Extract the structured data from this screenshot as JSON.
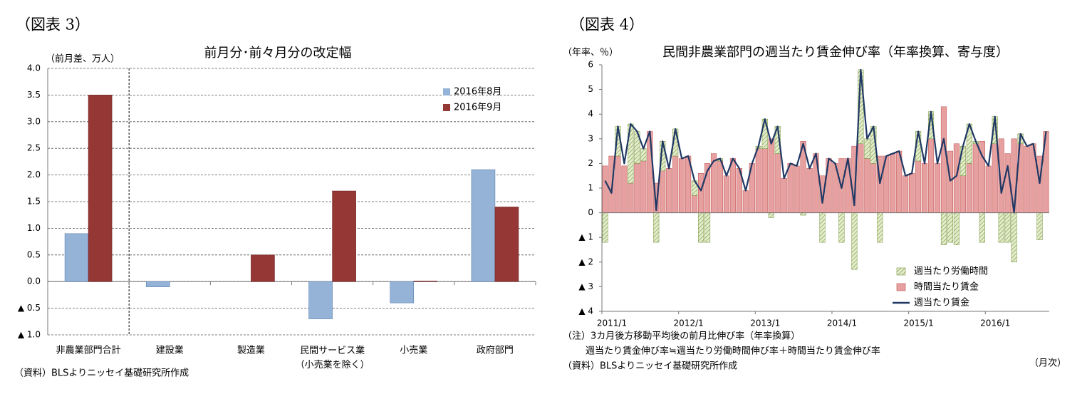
{
  "chart_data": [
    {
      "type": "bar",
      "heading": "（図表 3）",
      "title": "前月分･前々月分の改定幅",
      "y_label": "（前月差、万人）",
      "source": "（資料）BLSよりニッセイ基礎研究所作成",
      "categories": [
        "非農業部門合計",
        "建設業",
        "製造業",
        "民間サービス業\n（小売業を除く）",
        "小売業",
        "政府部門"
      ],
      "series": [
        {
          "name": "2016年8月",
          "color": "#95b3d7",
          "values": [
            0.9,
            -0.1,
            0,
            -0.7,
            -0.4,
            2.1
          ]
        },
        {
          "name": "2016年9月",
          "color": "#953735",
          "values": [
            3.5,
            0,
            0.5,
            1.7,
            0.01,
            1.4
          ]
        }
      ],
      "ylim": [
        -1,
        4
      ],
      "yticks": [
        {
          "value": 4,
          "label": "4.0"
        },
        {
          "value": 3.5,
          "label": "3.5"
        },
        {
          "value": 3,
          "label": "3.0"
        },
        {
          "value": 2.5,
          "label": "2.5"
        },
        {
          "value": 2,
          "label": "2.0"
        },
        {
          "value": 1.5,
          "label": "1.5"
        },
        {
          "value": 1,
          "label": "1.0"
        },
        {
          "value": 0.5,
          "label": "0.5"
        },
        {
          "value": 0,
          "label": "0.0"
        },
        {
          "value": -0.5,
          "label": "▲ 0.5"
        },
        {
          "value": -1,
          "label": "▲ 1.0"
        }
      ],
      "grid": true,
      "legend": "top-right"
    },
    {
      "type": "combo",
      "heading": "（図表 4）",
      "title": "民間非農業部門の週当たり賃金伸び率（年率換算、寄与度）",
      "y_label": "（年率、％）",
      "notes": [
        "（注）3カ月後方移動平均後の前月比伸び率（年率換算）",
        "週当たり賃金伸び率≒週当たり労働時間伸び率＋時間当たり賃金伸び率"
      ],
      "source": "（資料）BLSよりニッセイ基礎研究所作成",
      "x_note": "（月次）",
      "categories": [
        "2011/1",
        null,
        null,
        null,
        null,
        null,
        null,
        null,
        null,
        null,
        null,
        null,
        "2012/1",
        null,
        null,
        null,
        null,
        null,
        null,
        null,
        null,
        null,
        null,
        null,
        "2013/1",
        null,
        null,
        null,
        null,
        null,
        null,
        null,
        null,
        null,
        null,
        null,
        "2014/1",
        null,
        null,
        null,
        null,
        null,
        null,
        null,
        null,
        null,
        null,
        null,
        "2015/1",
        null,
        null,
        null,
        null,
        null,
        null,
        null,
        null,
        null,
        null,
        null,
        "2016/1",
        null,
        null,
        null,
        null,
        null,
        null,
        null,
        null,
        null
      ],
      "series": [
        {
          "name": "週当たり労働時間",
          "type": "bar",
          "color": "#d7e4bd",
          "pattern": "hatch",
          "values": [
            -1.2,
            0,
            1.2,
            0,
            2.4,
            1.3,
            0.5,
            0,
            -1.2,
            1.2,
            0,
            1.1,
            0,
            0,
            0.6,
            -1.2,
            -1.2,
            0,
            0.1,
            0,
            0,
            0,
            0,
            0,
            0.1,
            1.2,
            -0.2,
            1.1,
            0,
            0,
            0,
            -0.1,
            0,
            0,
            -1.2,
            0,
            0,
            -1.2,
            0,
            -2.3,
            3,
            0.8,
            1.5,
            -1.2,
            0,
            0,
            0,
            0,
            0,
            1.2,
            0,
            1.1,
            0,
            -1.3,
            -1.2,
            -1.3,
            1.2,
            1.6,
            0.1,
            -1.2,
            0,
            1.1,
            -1.2,
            -1.2,
            -2,
            0.4,
            0,
            0,
            -1.1,
            0
          ]
        },
        {
          "name": "時間当たり賃金",
          "type": "bar",
          "color": "#e6a0a0",
          "values": [
            1.9,
            2.3,
            2.3,
            1.9,
            1.2,
            2,
            2.1,
            3.3,
            1.2,
            1.7,
            1.8,
            2.3,
            2.2,
            2.3,
            0.7,
            1.6,
            2,
            2.4,
            2.1,
            1.5,
            2.2,
            1.8,
            0.9,
            2,
            2.6,
            2.6,
            3,
            2.4,
            1.4,
            2,
            1.9,
            2.9,
            1.8,
            2.4,
            1.5,
            2.2,
            2,
            2.2,
            2.2,
            2.7,
            2.8,
            2.2,
            2,
            2.3,
            2.3,
            2.4,
            2.5,
            1.5,
            1.6,
            2.1,
            2,
            3,
            2,
            4.3,
            2.5,
            2.8,
            1.5,
            2,
            2.8,
            2.9,
            1.9,
            2.8,
            3,
            2.4,
            3,
            2.8,
            2.7,
            2.8,
            2.3,
            3.3
          ]
        },
        {
          "name": "週当たり賃金",
          "type": "line",
          "color": "#1f3864",
          "values": [
            1.3,
            0.8,
            3.5,
            2,
            3.6,
            3.3,
            2.6,
            3.3,
            0.1,
            2.9,
            1.8,
            3.4,
            2.2,
            2.3,
            1.3,
            0.9,
            1.7,
            2.1,
            2.2,
            1.5,
            2.2,
            1.8,
            0.9,
            2,
            2.7,
            3.8,
            2.8,
            3.5,
            1.4,
            2,
            1.9,
            2.8,
            1.8,
            2.4,
            0.4,
            2.2,
            2,
            1,
            2.2,
            0.3,
            5.8,
            3,
            3.5,
            1.2,
            2.3,
            2.4,
            2.5,
            1.5,
            1.6,
            3.3,
            2,
            4.1,
            2,
            3,
            1.3,
            1.5,
            2.7,
            3.6,
            2.9,
            2.3,
            1.9,
            3.9,
            0.8,
            1.9,
            0,
            3.2,
            2.7,
            2.8,
            1.2,
            3.3
          ]
        }
      ],
      "ylim": [
        -4,
        6
      ],
      "yticks": [
        6,
        5,
        4,
        3,
        2,
        1,
        0,
        {
          "value": -1,
          "label": "▲ 1"
        },
        {
          "value": -2,
          "label": "▲ 2"
        },
        {
          "value": -3,
          "label": "▲ 3"
        },
        {
          "value": -4,
          "label": "▲ 4"
        }
      ],
      "grid": false,
      "legend": "bottom-right"
    }
  ]
}
